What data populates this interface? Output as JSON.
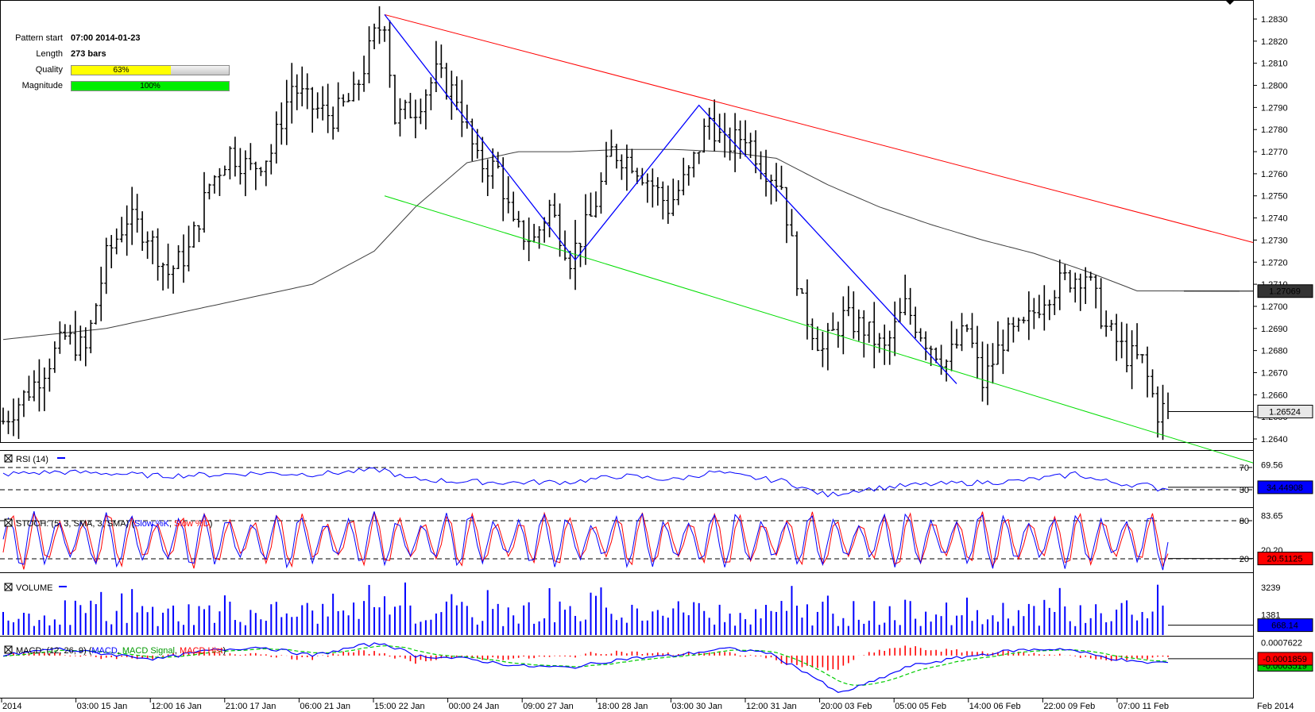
{
  "info": {
    "pattern_start_label": "Pattern start",
    "pattern_start_value": "07:00 2014-01-23",
    "length_label": "Length",
    "length_value": "273 bars",
    "quality_label": "Quality",
    "quality_text": "63%",
    "quality_value": 63,
    "magnitude_label": "Magnitude",
    "magnitude_text": "100%",
    "magnitude_value": 100
  },
  "colors": {
    "resistance": "#ff0000",
    "support": "#00dd00",
    "zigzag": "#0000ff",
    "ma": "#404040",
    "quality": "#ffff00",
    "magnitude": "#00ee00",
    "volume": "#0000ff",
    "rsi": "#0000ff",
    "stoch_k": "#0000ff",
    "stoch_d": "#ff0000",
    "macd": "#0000ff",
    "macd_signal": "#00cc00",
    "macd_hist": "#ff0000"
  },
  "chart_data": [
    {
      "type": "ohlc",
      "x_ticks": [
        "2014",
        "03:00 15 Jan",
        "12:00 16 Jan",
        "21:00 17 Jan",
        "06:00 21 Jan",
        "15:00 22 Jan",
        "00:00 24 Jan",
        "09:00 27 Jan",
        "18:00 28 Jan",
        "03:00 30 Jan",
        "12:00 31 Jan",
        "20:00 03 Feb",
        "05:00 05 Feb",
        "14:00 06 Feb",
        "22:00 09 Feb",
        "07:00 11 Feb",
        "Feb 2014"
      ],
      "y_ticks": [
        "1.2830",
        "1.2820",
        "1.2810",
        "1.2800",
        "1.2790",
        "1.2780",
        "1.2770",
        "1.2760",
        "1.2750",
        "1.2740",
        "1.2730",
        "1.2720",
        "1.2710",
        "1.2700",
        "1.2690",
        "1.2680",
        "1.2670",
        "1.2660",
        "1.2650",
        "1.2640"
      ],
      "ylim": [
        1.2638,
        1.2838
      ],
      "current_price": "1.26524",
      "ma_value": "1.27069",
      "price_path": [
        [
          0,
          1.2648
        ],
        [
          6,
          1.2665
        ],
        [
          12,
          1.2686
        ],
        [
          16,
          1.268
        ],
        [
          20,
          1.2722
        ],
        [
          24,
          1.274
        ],
        [
          28,
          1.2733
        ],
        [
          32,
          1.2715
        ],
        [
          36,
          1.2725
        ],
        [
          40,
          1.2755
        ],
        [
          44,
          1.277
        ],
        [
          48,
          1.2762
        ],
        [
          52,
          1.277
        ],
        [
          56,
          1.28
        ],
        [
          60,
          1.279
        ],
        [
          64,
          1.2786
        ],
        [
          68,
          1.2795
        ],
        [
          72,
          1.2822
        ],
        [
          74,
          1.283
        ],
        [
          76,
          1.2785
        ],
        [
          80,
          1.279
        ],
        [
          84,
          1.2805
        ],
        [
          88,
          1.2795
        ],
        [
          92,
          1.2765
        ],
        [
          96,
          1.2762
        ],
        [
          99,
          1.2735
        ],
        [
          103,
          1.273
        ],
        [
          106,
          1.2745
        ],
        [
          110,
          1.2722
        ],
        [
          114,
          1.274
        ],
        [
          118,
          1.277
        ],
        [
          122,
          1.2766
        ],
        [
          126,
          1.2755
        ],
        [
          129,
          1.2745
        ],
        [
          133,
          1.276
        ],
        [
          137,
          1.2785
        ],
        [
          140,
          1.2772
        ],
        [
          144,
          1.2778
        ],
        [
          147,
          1.2765
        ],
        [
          151,
          1.2755
        ],
        [
          155,
          1.27
        ],
        [
          159,
          1.268
        ],
        [
          163,
          1.2695
        ],
        [
          167,
          1.269
        ],
        [
          171,
          1.268
        ],
        [
          175,
          1.27
        ],
        [
          179,
          1.2685
        ],
        [
          183,
          1.2675
        ],
        [
          187,
          1.269
        ],
        [
          190,
          1.2665
        ],
        [
          194,
          1.2685
        ],
        [
          198,
          1.269
        ],
        [
          202,
          1.2705
        ],
        [
          206,
          1.2712
        ],
        [
          210,
          1.2715
        ],
        [
          214,
          1.269
        ],
        [
          218,
          1.2678
        ],
        [
          221,
          1.2675
        ],
        [
          224,
          1.2652
        ],
        [
          226,
          1.2655
        ]
      ],
      "ma_path": [
        [
          0,
          1.2685
        ],
        [
          20,
          1.269
        ],
        [
          40,
          1.27
        ],
        [
          60,
          1.271
        ],
        [
          72,
          1.2725
        ],
        [
          80,
          1.2745
        ],
        [
          90,
          1.2765
        ],
        [
          100,
          1.277
        ],
        [
          110,
          1.277
        ],
        [
          120,
          1.2771
        ],
        [
          130,
          1.2771
        ],
        [
          140,
          1.277
        ],
        [
          150,
          1.2767
        ],
        [
          160,
          1.2755
        ],
        [
          170,
          1.2745
        ],
        [
          180,
          1.2737
        ],
        [
          190,
          1.273
        ],
        [
          200,
          1.2724
        ],
        [
          210,
          1.2716
        ],
        [
          220,
          1.2707
        ]
      ],
      "zigzag": [
        [
          74,
          1.2832
        ],
        [
          111,
          1.2721
        ],
        [
          135,
          1.2791
        ],
        [
          185,
          1.2665
        ]
      ],
      "channel_upper": [
        [
          74,
          1.2832
        ],
        [
          226,
          1.2739
        ]
      ],
      "channel_lower": [
        [
          74,
          1.275
        ],
        [
          226,
          1.2641
        ]
      ]
    },
    {
      "type": "line",
      "title": "RSI (14)",
      "levels": [
        "70",
        "30"
      ],
      "right_labels": [
        "69.56"
      ],
      "current_value": "34.44908",
      "ylim": [
        0,
        100
      ],
      "path": [
        [
          0,
          58
        ],
        [
          10,
          62
        ],
        [
          20,
          60
        ],
        [
          30,
          55
        ],
        [
          40,
          57
        ],
        [
          50,
          60
        ],
        [
          60,
          58
        ],
        [
          70,
          64
        ],
        [
          74,
          66
        ],
        [
          78,
          50
        ],
        [
          88,
          45
        ],
        [
          98,
          43
        ],
        [
          110,
          44
        ],
        [
          120,
          55
        ],
        [
          130,
          48
        ],
        [
          138,
          62
        ],
        [
          145,
          52
        ],
        [
          152,
          45
        ],
        [
          156,
          30
        ],
        [
          160,
          20
        ],
        [
          166,
          30
        ],
        [
          176,
          38
        ],
        [
          186,
          42
        ],
        [
          196,
          45
        ],
        [
          206,
          55
        ],
        [
          208,
          60
        ],
        [
          212,
          48
        ],
        [
          218,
          40
        ],
        [
          222,
          38
        ],
        [
          224,
          32
        ],
        [
          226,
          34
        ]
      ]
    },
    {
      "type": "line",
      "title": "STOCH: (5, 3, SMA, 3, SMA)",
      "series": [
        {
          "name": "Slow %K"
        },
        {
          "name": "Slow %D"
        }
      ],
      "levels": [
        "80",
        "20"
      ],
      "right_labels": [
        "83.65",
        "20.20"
      ],
      "current_value": "20.51125",
      "ylim": [
        0,
        100
      ],
      "cycles": 48
    },
    {
      "type": "bar",
      "title": "VOLUME",
      "right_labels": [
        "3239",
        "1381"
      ],
      "current_value": "668.14",
      "ylim": [
        0,
        4200
      ],
      "bars": 226
    },
    {
      "type": "line",
      "title": "MACD: (12, 26, 9)",
      "series": [
        {
          "name": "MACD"
        },
        {
          "name": "MACD Signal"
        },
        {
          "name": "MACD Hist"
        }
      ],
      "right_labels": [
        "0.0007622",
        "0.0001859",
        "-0.0003519"
      ],
      "current_value": "-0.0001859",
      "ylim": [
        -0.0024,
        0.0011
      ],
      "macd_path": [
        [
          0,
          0.0
        ],
        [
          10,
          0.0004
        ],
        [
          20,
          0.0001
        ],
        [
          30,
          -0.0002
        ],
        [
          40,
          0.0003
        ],
        [
          50,
          0.0005
        ],
        [
          60,
          0.0
        ],
        [
          70,
          0.0006
        ],
        [
          74,
          0.0007
        ],
        [
          80,
          0.0
        ],
        [
          90,
          -0.0002
        ],
        [
          100,
          -0.0006
        ],
        [
          110,
          -0.0007
        ],
        [
          120,
          -0.0002
        ],
        [
          130,
          0.0
        ],
        [
          140,
          0.0004
        ],
        [
          148,
          0.0002
        ],
        [
          156,
          -0.001
        ],
        [
          162,
          -0.0022
        ],
        [
          168,
          -0.0016
        ],
        [
          176,
          -0.0006
        ],
        [
          186,
          -0.0001
        ],
        [
          196,
          0.0003
        ],
        [
          206,
          0.0004
        ],
        [
          212,
          0.0
        ],
        [
          220,
          -0.0004
        ],
        [
          226,
          -0.0004
        ]
      ]
    }
  ]
}
